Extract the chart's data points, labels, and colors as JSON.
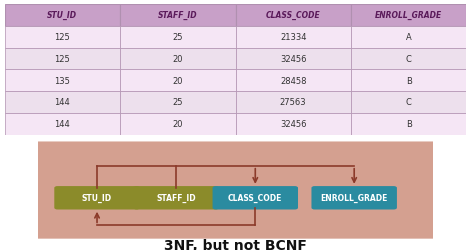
{
  "table_headers": [
    "STU_ID",
    "STAFF_ID",
    "CLASS_CODE",
    "ENROLL_GRADE"
  ],
  "table_rows": [
    [
      "125",
      "25",
      "21334",
      "A"
    ],
    [
      "125",
      "20",
      "32456",
      "C"
    ],
    [
      "135",
      "20",
      "28458",
      "B"
    ],
    [
      "144",
      "25",
      "27563",
      "C"
    ],
    [
      "144",
      "20",
      "32456",
      "B"
    ]
  ],
  "header_bg": "#c8a0c8",
  "header_text": "#5a1a5a",
  "row_bg_odd": "#f5e6f5",
  "row_bg_even": "#ede0ed",
  "table_border": "#b090b0",
  "diagram_bg": "#d4a090",
  "box_olive": "#8b8b2a",
  "box_teal": "#2a8ba0",
  "box_text": "#ffffff",
  "arrow_color": "#8b3a2a",
  "caption": "3NF, but not BCNF",
  "caption_fontsize": 10,
  "col_labels": [
    "STU_ID",
    "STAFF_ID",
    "CLASS_CODE",
    "ENROLL_GRADE"
  ]
}
